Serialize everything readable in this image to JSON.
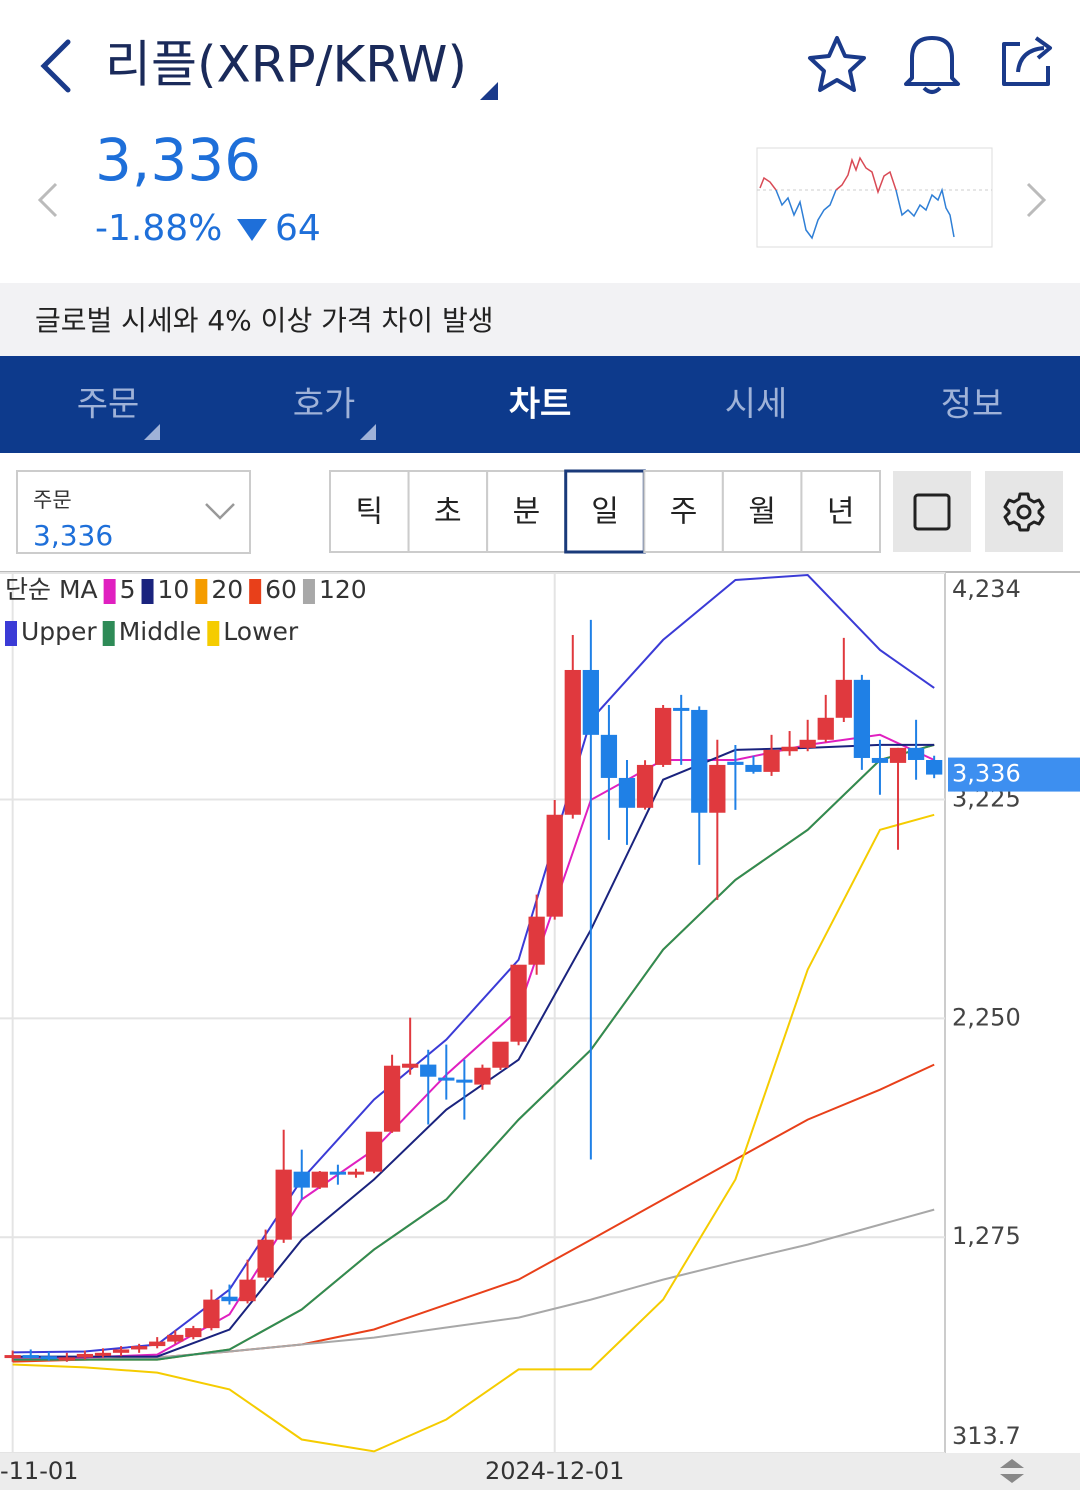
{
  "header": {
    "title": "리플(XRP/KRW)"
  },
  "price": {
    "last": "3,336",
    "change_pct": "-1.88%",
    "change": "64"
  },
  "notice": "글로벌 시세와 4% 이상 가격 차이 발생",
  "tabs": {
    "items": [
      "주문",
      "호가",
      "차트",
      "시세",
      "정보"
    ],
    "active": 2
  },
  "order": {
    "label": "주문",
    "value": "3,336"
  },
  "periods": {
    "items": [
      "틱",
      "초",
      "분",
      "일",
      "주",
      "월",
      "년"
    ],
    "active": 3
  },
  "chart_data": {
    "type": "candlestick",
    "up_color": "#e0393e",
    "down_color": "#1f80e6",
    "xlim": [
      -0.7,
      51.6
    ],
    "xticks": [
      {
        "value": 0,
        "label": "-11-01"
      },
      {
        "value": 30,
        "label": "2024-12-01"
      }
    ],
    "ylim": [
      313.7,
      4234
    ],
    "yticks": [
      313.7,
      {
        "value": 1275,
        "label": "1,275"
      },
      {
        "value": 2250,
        "label": "2,250"
      },
      {
        "value": 3225,
        "label": "3,225"
      },
      {
        "value": 4234,
        "label": "4,234"
      }
    ],
    "grid": true,
    "last": {
      "value": 3336,
      "label": "3,336"
    },
    "ohlc": {
      "open": [
        740,
        750,
        745,
        735,
        740,
        755,
        760,
        775,
        790,
        810,
        830,
        870,
        1010,
        990,
        1095,
        1264,
        1567,
        1496,
        1567,
        1554,
        1567,
        1745,
        2030,
        2044,
        1986,
        1977,
        1955,
        2030,
        2146,
        2489,
        2703,
        3157,
        3802,
        3513,
        3321,
        3188,
        3379,
        3633,
        3624,
        3166,
        3393,
        3379,
        3348,
        3440,
        3455,
        3491,
        3589,
        3758,
        3410,
        3388,
        3455,
        3401
      ],
      "high": [
        770,
        775,
        765,
        760,
        770,
        780,
        790,
        800,
        830,
        860,
        880,
        1042,
        1064,
        1175,
        1309,
        1754,
        1665,
        1570,
        1598,
        1580,
        1590,
        2088,
        2253,
        2110,
        2133,
        2066,
        2044,
        2060,
        2160,
        2801,
        3223,
        3958,
        4025,
        3646,
        3401,
        3400,
        3646,
        3691,
        3640,
        3491,
        3468,
        3420,
        3513,
        3530,
        3580,
        3691,
        3945,
        3780,
        3491,
        3455,
        3580,
        3420
      ],
      "low": [
        720,
        735,
        725,
        720,
        730,
        740,
        745,
        760,
        780,
        800,
        820,
        860,
        975,
        980,
        1080,
        1250,
        1443,
        1490,
        1509,
        1540,
        1560,
        1740,
        1999,
        1777,
        1888,
        1799,
        1932,
        2020,
        2130,
        2444,
        2690,
        3140,
        1621,
        3045,
        3023,
        3180,
        3370,
        3379,
        2934,
        2778,
        3179,
        3340,
        3330,
        3420,
        3440,
        3480,
        3570,
        3357,
        3246,
        3001,
        3313,
        3320
      ],
      "close": [
        750,
        745,
        735,
        740,
        755,
        760,
        775,
        790,
        810,
        840,
        870,
        997,
        990,
        1086,
        1264,
        1576,
        1496,
        1567,
        1554,
        1567,
        1745,
        2039,
        2048,
        1990,
        1977,
        1964,
        2030,
        2146,
        2489,
        2703,
        3157,
        3802,
        3513,
        3321,
        3188,
        3379,
        3633,
        3624,
        3166,
        3379,
        3379,
        3348,
        3446,
        3460,
        3491,
        3589,
        3758,
        3410,
        3388,
        3455,
        3401,
        3336
      ]
    },
    "ma": {
      "title": "단순 MA",
      "series": [
        {
          "name": "5",
          "color": "#e020c0",
          "x": [
            0,
            4,
            8,
            12,
            16,
            20,
            24,
            28,
            32,
            36,
            40,
            44,
            48,
            51
          ],
          "values": [
            739,
            739,
            752,
            931,
            1443,
            1665,
            1999,
            2289,
            3223,
            3401,
            3401,
            3468,
            3513,
            3401
          ]
        },
        {
          "name": "10",
          "color": "#1a237e",
          "x": [
            0,
            4,
            8,
            12,
            16,
            20,
            24,
            28,
            32,
            36,
            40,
            44,
            48,
            51
          ],
          "values": [
            743,
            743,
            743,
            864,
            1264,
            1532,
            1843,
            2066,
            2645,
            3313,
            3446,
            3455,
            3468,
            3468
          ]
        },
        {
          "name": "20",
          "color": "#f59c00",
          "x": [
            0,
            4,
            8,
            12,
            16,
            20,
            24,
            28,
            32,
            36,
            40,
            44,
            48,
            51
          ],
          "values": [
            730,
            730,
            730,
            775,
            953,
            1220,
            1443,
            1799,
            2110,
            2556,
            2867,
            3090,
            3401,
            3468
          ]
        },
        {
          "name": "60",
          "color": "#e8401a",
          "x": [
            0,
            4,
            8,
            12,
            16,
            20,
            24,
            28,
            32,
            36,
            40,
            44,
            48,
            51
          ],
          "values": [
            721,
            730,
            739,
            766,
            797,
            864,
            975,
            1086,
            1264,
            1443,
            1621,
            1799,
            1932,
            2044
          ]
        },
        {
          "name": "120",
          "color": "#a8a8a8",
          "x": [
            0,
            4,
            8,
            12,
            16,
            20,
            24,
            28,
            32,
            36,
            40,
            44,
            48,
            51
          ],
          "values": [
            730,
            730,
            739,
            766,
            797,
            828,
            873,
            917,
            997,
            1086,
            1166,
            1242,
            1331,
            1398
          ]
        }
      ]
    },
    "bollinger": {
      "series": [
        {
          "name": "Upper",
          "color": "#3b3bd6",
          "x": [
            0,
            4,
            8,
            12,
            16,
            20,
            24,
            28,
            32,
            36,
            40,
            44,
            48,
            51
          ],
          "values": [
            762,
            766,
            797,
            1042,
            1532,
            1888,
            2155,
            2511,
            3580,
            3936,
            4203,
            4225,
            3891,
            3722
          ]
        },
        {
          "name": "Middle",
          "color": "#2e8b57",
          "x": [
            0,
            4,
            8,
            12,
            16,
            20,
            24,
            28,
            32,
            36,
            40,
            44,
            48,
            51
          ],
          "values": [
            730,
            730,
            730,
            775,
            953,
            1220,
            1443,
            1799,
            2110,
            2556,
            2867,
            3090,
            3401,
            3468
          ]
        },
        {
          "name": "Lower",
          "color": "#f5cc00",
          "x": [
            0,
            4,
            8,
            12,
            16,
            20,
            24,
            28,
            32,
            36,
            40,
            44,
            48,
            51
          ],
          "values": [
            708,
            695,
            672,
            597,
            374,
            321,
            463,
            686,
            686,
            997,
            1532,
            2467,
            3090,
            3157
          ]
        }
      ]
    }
  }
}
